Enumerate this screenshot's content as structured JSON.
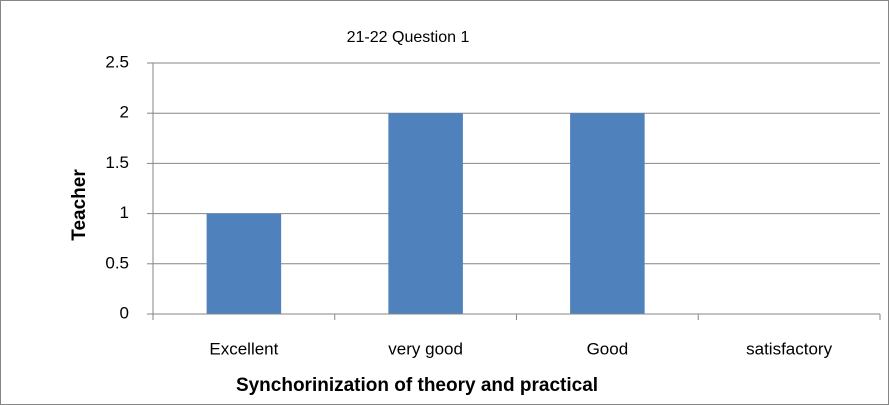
{
  "chart_data": {
    "type": "bar",
    "title": "21-22  Question  1",
    "categories": [
      "Excellent",
      "very good",
      "Good",
      "satisfactory"
    ],
    "values": [
      1,
      2,
      2,
      0
    ],
    "color": "#4f81bd",
    "x_label": "Synchorinization of theory and practical",
    "y_label": "Teacher",
    "ylim": [
      0,
      2.5
    ],
    "yticks": [
      0,
      0.5,
      1,
      1.5,
      2,
      2.5
    ],
    "grid": true
  }
}
